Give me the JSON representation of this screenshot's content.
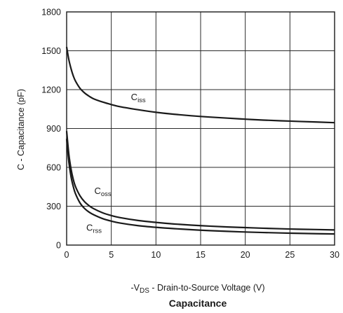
{
  "chart_data": {
    "type": "line",
    "title": "Capacitance",
    "xlabel": {
      "prefix": "-V",
      "subscript": "DS",
      "suffix": " - Drain-to-Source Voltage (V)"
    },
    "ylabel": "C - Capacitance (pF)",
    "xlim": [
      0,
      30
    ],
    "ylim": [
      0,
      1800
    ],
    "xticks": [
      0,
      5,
      10,
      15,
      20,
      25,
      30
    ],
    "yticks": [
      0,
      300,
      600,
      900,
      1200,
      1500,
      1800
    ],
    "grid": true,
    "line_color": "#1a1a1a",
    "series": [
      {
        "name": "C",
        "name_sub": "iss",
        "x": [
          0,
          0.25,
          0.5,
          0.75,
          1,
          1.5,
          2,
          2.5,
          3,
          4,
          5,
          6,
          8,
          10,
          12,
          15,
          18,
          20,
          22,
          25,
          28,
          30
        ],
        "y": [
          1530,
          1430,
          1360,
          1305,
          1265,
          1210,
          1175,
          1150,
          1130,
          1105,
          1085,
          1068,
          1045,
          1025,
          1010,
          993,
          980,
          972,
          965,
          957,
          950,
          945
        ]
      },
      {
        "name": "C",
        "name_sub": "oss",
        "x": [
          0,
          0.25,
          0.5,
          0.75,
          1,
          1.5,
          2,
          2.5,
          3,
          4,
          5,
          6,
          8,
          10,
          12,
          15,
          18,
          20,
          22,
          25,
          28,
          30
        ],
        "y": [
          880,
          700,
          585,
          505,
          450,
          380,
          335,
          305,
          282,
          250,
          228,
          212,
          190,
          175,
          163,
          150,
          140,
          135,
          130,
          124,
          120,
          117
        ]
      },
      {
        "name": "C",
        "name_sub": "rss",
        "x": [
          0,
          0.25,
          0.5,
          0.75,
          1,
          1.5,
          2,
          2.5,
          3,
          4,
          5,
          6,
          8,
          10,
          12,
          15,
          18,
          20,
          22,
          25,
          28,
          30
        ],
        "y": [
          820,
          640,
          525,
          450,
          395,
          325,
          283,
          255,
          235,
          205,
          185,
          170,
          150,
          137,
          127,
          115,
          106,
          101,
          97,
          92,
          88,
          86
        ]
      }
    ],
    "annotations": [
      {
        "series": 0,
        "x": 7.2,
        "y": 1120
      },
      {
        "series": 1,
        "x": 3.1,
        "y": 395
      },
      {
        "series": 2,
        "x": 2.2,
        "y": 110
      }
    ]
  }
}
